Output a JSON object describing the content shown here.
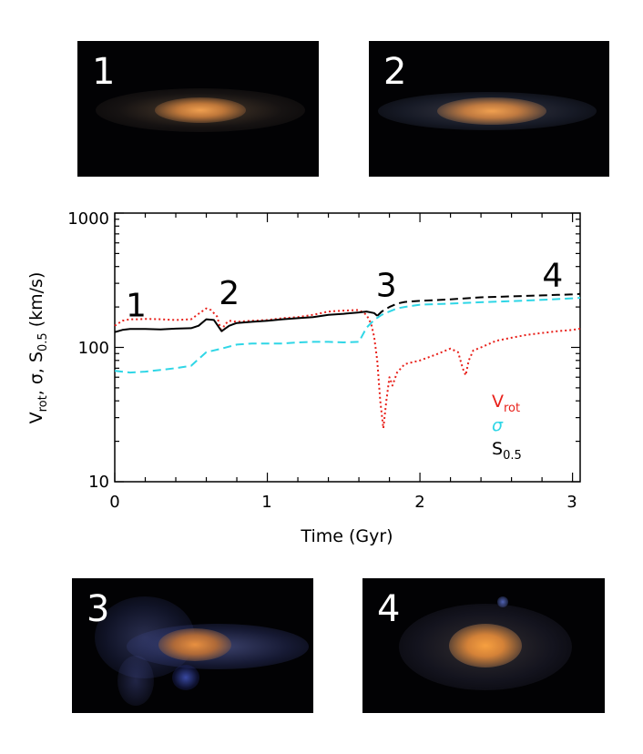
{
  "panels": [
    {
      "label": "1"
    },
    {
      "label": "2"
    },
    {
      "label": "3"
    },
    {
      "label": "4"
    }
  ],
  "chart_data": {
    "type": "line",
    "xlabel": "Time (Gyr)",
    "ylabel_parts": {
      "v": "V",
      "rot": "rot",
      "mid": ",  σ,  ",
      "s": "S",
      "s_sub": "0.5",
      "units": " (km/s)"
    },
    "xlim": [
      0,
      3.05
    ],
    "ylim": [
      10,
      1000
    ],
    "yscale": "log",
    "x_ticks": [
      "0",
      "1",
      "2",
      "3"
    ],
    "y_ticks": [
      "10",
      "100",
      "1000"
    ],
    "markers": [
      {
        "label": "1",
        "x": 0.14,
        "y": 170
      },
      {
        "label": "2",
        "x": 0.75,
        "y": 210
      },
      {
        "label": "3",
        "x": 1.78,
        "y": 240
      },
      {
        "label": "4",
        "x": 2.87,
        "y": 285
      }
    ],
    "legend": [
      {
        "text": "V",
        "sub": "rot",
        "color": "#e8201a"
      },
      {
        "text": "σ",
        "sub": "",
        "color": "#2fd6e6"
      },
      {
        "text": "S",
        "sub": "0.5",
        "color": "#000000"
      }
    ],
    "series": [
      {
        "name": "V_rot",
        "color": "#e8201a",
        "style": "dotted",
        "x": [
          0,
          0.05,
          0.1,
          0.15,
          0.2,
          0.3,
          0.4,
          0.5,
          0.55,
          0.6,
          0.63,
          0.67,
          0.7,
          0.72,
          0.75,
          0.8,
          0.9,
          1.0,
          1.1,
          1.2,
          1.3,
          1.4,
          1.5,
          1.6,
          1.65,
          1.68,
          1.7,
          1.72,
          1.74,
          1.76,
          1.78,
          1.8,
          1.82,
          1.85,
          1.9,
          2.0,
          2.1,
          2.2,
          2.25,
          2.28,
          2.3,
          2.32,
          2.35,
          2.4,
          2.5,
          2.6,
          2.7,
          2.8,
          2.9,
          3.0,
          3.05
        ],
        "y": [
          145,
          158,
          162,
          162,
          163,
          162,
          160,
          162,
          178,
          195,
          190,
          170,
          130,
          148,
          158,
          155,
          158,
          160,
          165,
          168,
          175,
          185,
          188,
          190,
          175,
          150,
          120,
          80,
          40,
          25,
          40,
          60,
          52,
          65,
          75,
          80,
          88,
          98,
          92,
          70,
          62,
          80,
          95,
          100,
          112,
          118,
          124,
          128,
          132,
          135,
          138
        ]
      },
      {
        "name": "sigma",
        "color": "#2fd6e6",
        "style": "dashed",
        "x": [
          0,
          0.1,
          0.2,
          0.3,
          0.4,
          0.5,
          0.55,
          0.6,
          0.7,
          0.8,
          0.9,
          1.0,
          1.1,
          1.2,
          1.3,
          1.4,
          1.5,
          1.6,
          1.65,
          1.7,
          1.75,
          1.8,
          1.85,
          1.9,
          2.0,
          2.2,
          2.4,
          2.6,
          2.8,
          3.0,
          3.05
        ],
        "y": [
          67,
          65,
          66,
          68,
          70,
          73,
          82,
          92,
          98,
          105,
          107,
          107,
          107,
          109,
          110,
          110,
          109,
          110,
          140,
          160,
          175,
          185,
          195,
          200,
          208,
          212,
          217,
          221,
          226,
          232,
          234
        ]
      },
      {
        "name": "S_0.5",
        "color": "#000000",
        "style": "solid",
        "x": [
          0,
          0.05,
          0.1,
          0.2,
          0.3,
          0.4,
          0.5,
          0.55,
          0.6,
          0.65,
          0.7,
          0.75,
          0.8,
          0.9,
          1.0,
          1.1,
          1.2,
          1.3,
          1.4,
          1.5,
          1.6,
          1.65,
          1.7,
          1.72
        ],
        "y": [
          130,
          135,
          137,
          137,
          136,
          138,
          139,
          145,
          162,
          160,
          132,
          145,
          152,
          155,
          158,
          162,
          165,
          168,
          175,
          178,
          182,
          185,
          180,
          172
        ]
      },
      {
        "name": "S_0.5",
        "color": "#000000",
        "style": "dashed",
        "x": [
          1.72,
          1.75,
          1.8,
          1.85,
          1.9,
          2.0,
          2.1,
          2.2,
          2.3,
          2.4,
          2.5,
          2.6,
          2.7,
          2.8,
          2.9,
          3.0,
          3.05
        ],
        "y": [
          172,
          185,
          200,
          212,
          218,
          222,
          225,
          228,
          232,
          236,
          238,
          240,
          242,
          244,
          246,
          248,
          250
        ]
      }
    ]
  }
}
